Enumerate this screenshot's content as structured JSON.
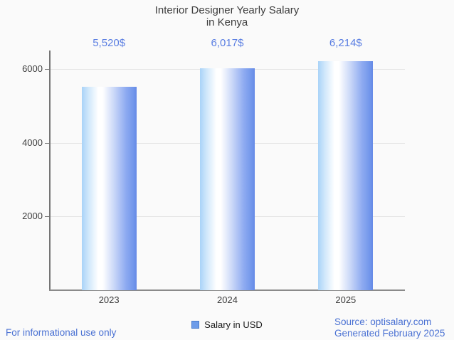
{
  "title": {
    "line1": "Interior Designer Yearly Salary",
    "line2": "in Kenya"
  },
  "chart_data": {
    "type": "bar",
    "title": "Interior Designer Yearly Salary in Kenya",
    "categories": [
      "2023",
      "2024",
      "2025"
    ],
    "series": [
      {
        "name": "Salary in USD",
        "values": [
          5520,
          6017,
          6214
        ]
      }
    ],
    "annotations": [
      "5,520$",
      "6,017$",
      "6,214$"
    ],
    "xlabel": "",
    "ylabel": "",
    "yticks": [
      2000,
      4000,
      6000
    ],
    "ylim": [
      0,
      6500
    ],
    "grid": true,
    "legend_position": "bottom-center"
  },
  "legend": {
    "label": "Salary in USD"
  },
  "footer": {
    "left": "For informational use only",
    "source": "Source: optisalary.com",
    "generated": "Generated February 2025"
  },
  "colors": {
    "annotation_text": "#5a7ee2",
    "footer_text": "#4a71d3",
    "bar_gradient_light": "#a9d3f8",
    "bar_gradient_dark": "#6e93ea",
    "legend_swatch_fill": "#6d9ce9",
    "legend_swatch_border": "#4a7dcc",
    "title_text": "#3d3d3d",
    "axis_line": "#757575",
    "gridline": "#e4e4e4",
    "background": "#fafafa"
  }
}
